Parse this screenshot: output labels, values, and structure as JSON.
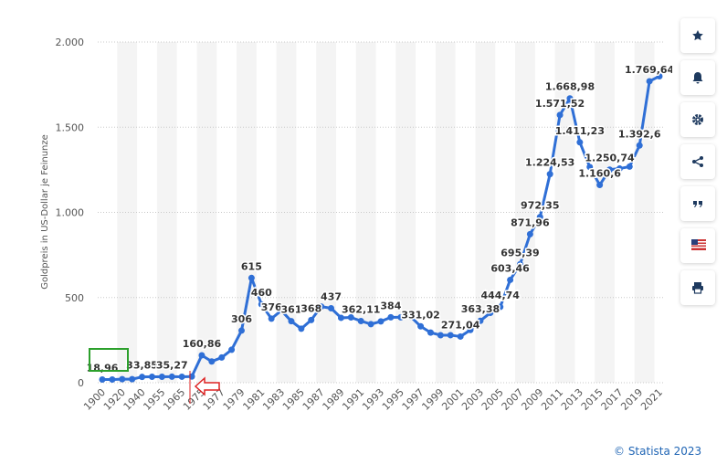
{
  "chart_data": {
    "type": "line",
    "y_label": "Goldpreis in US-Dollar je Feinunze",
    "categories": [
      "1900",
      null,
      "1920",
      null,
      "1940",
      null,
      "1955",
      null,
      "1965",
      null,
      "1975",
      null,
      "1977",
      null,
      "1979",
      null,
      "1981",
      null,
      "1983",
      null,
      "1985",
      null,
      "1987",
      null,
      "1989",
      null,
      "1991",
      null,
      "1993",
      null,
      "1995",
      null,
      "1997",
      null,
      "1999",
      null,
      "2001",
      null,
      "2003",
      null,
      "2005",
      null,
      "2007",
      null,
      "2009",
      null,
      "2011",
      null,
      "2013",
      null,
      "2015",
      null,
      "2017",
      null,
      "2019",
      null,
      "2021"
    ],
    "series": [
      {
        "color": "#2f6fd6",
        "values": [
          18.96,
          18.92,
          20.68,
          20.65,
          33.85,
          34.72,
          35.03,
          35.27,
          35.12,
          36.02,
          160.86,
          124.74,
          147.84,
          193.4,
          306,
          615,
          460,
          376,
          424,
          361,
          317,
          368,
          447,
          437,
          381,
          383.5,
          362.11,
          343.82,
          359.77,
          384,
          384.17,
          387.77,
          331.02,
          294.24,
          278.98,
          279.11,
          271.04,
          309.73,
          363.38,
          409.72,
          444.74,
          603.46,
          695.39,
          871.96,
          972.35,
          1224.53,
          1571.52,
          1668.98,
          1411.23,
          1266.4,
          1160.6,
          1250.74,
          1257.12,
          1268.49,
          1392.6,
          1769.64,
          1798.89
        ],
        "value_labels": [
          "18,96",
          null,
          null,
          null,
          "33,85",
          null,
          null,
          "35,27",
          null,
          null,
          "160,86",
          null,
          null,
          null,
          "306",
          "615",
          "460",
          "376",
          null,
          "361",
          null,
          "368",
          null,
          "437",
          null,
          null,
          "362,11",
          null,
          null,
          "384",
          null,
          null,
          "331,02",
          null,
          null,
          null,
          "271,04",
          null,
          "363,38",
          null,
          "444,74",
          "603,46",
          "695,39",
          "871,96",
          "972,35",
          "1.224,53",
          "1.571,52",
          "1.668,98",
          "1.411,23",
          null,
          "1.160,6",
          "1.250,74",
          null,
          null,
          "1.392,6",
          "1.769,64",
          null
        ]
      }
    ],
    "ylim": [
      0,
      2000
    ],
    "yticks": [
      0,
      500,
      {
        "value": 1000,
        "label": "1.000"
      },
      {
        "value": 1500,
        "label": "1.500"
      },
      {
        "value": 2000,
        "label": "2.000"
      }
    ],
    "grid": true
  },
  "footer": {
    "credit": "© Statista 2023"
  }
}
